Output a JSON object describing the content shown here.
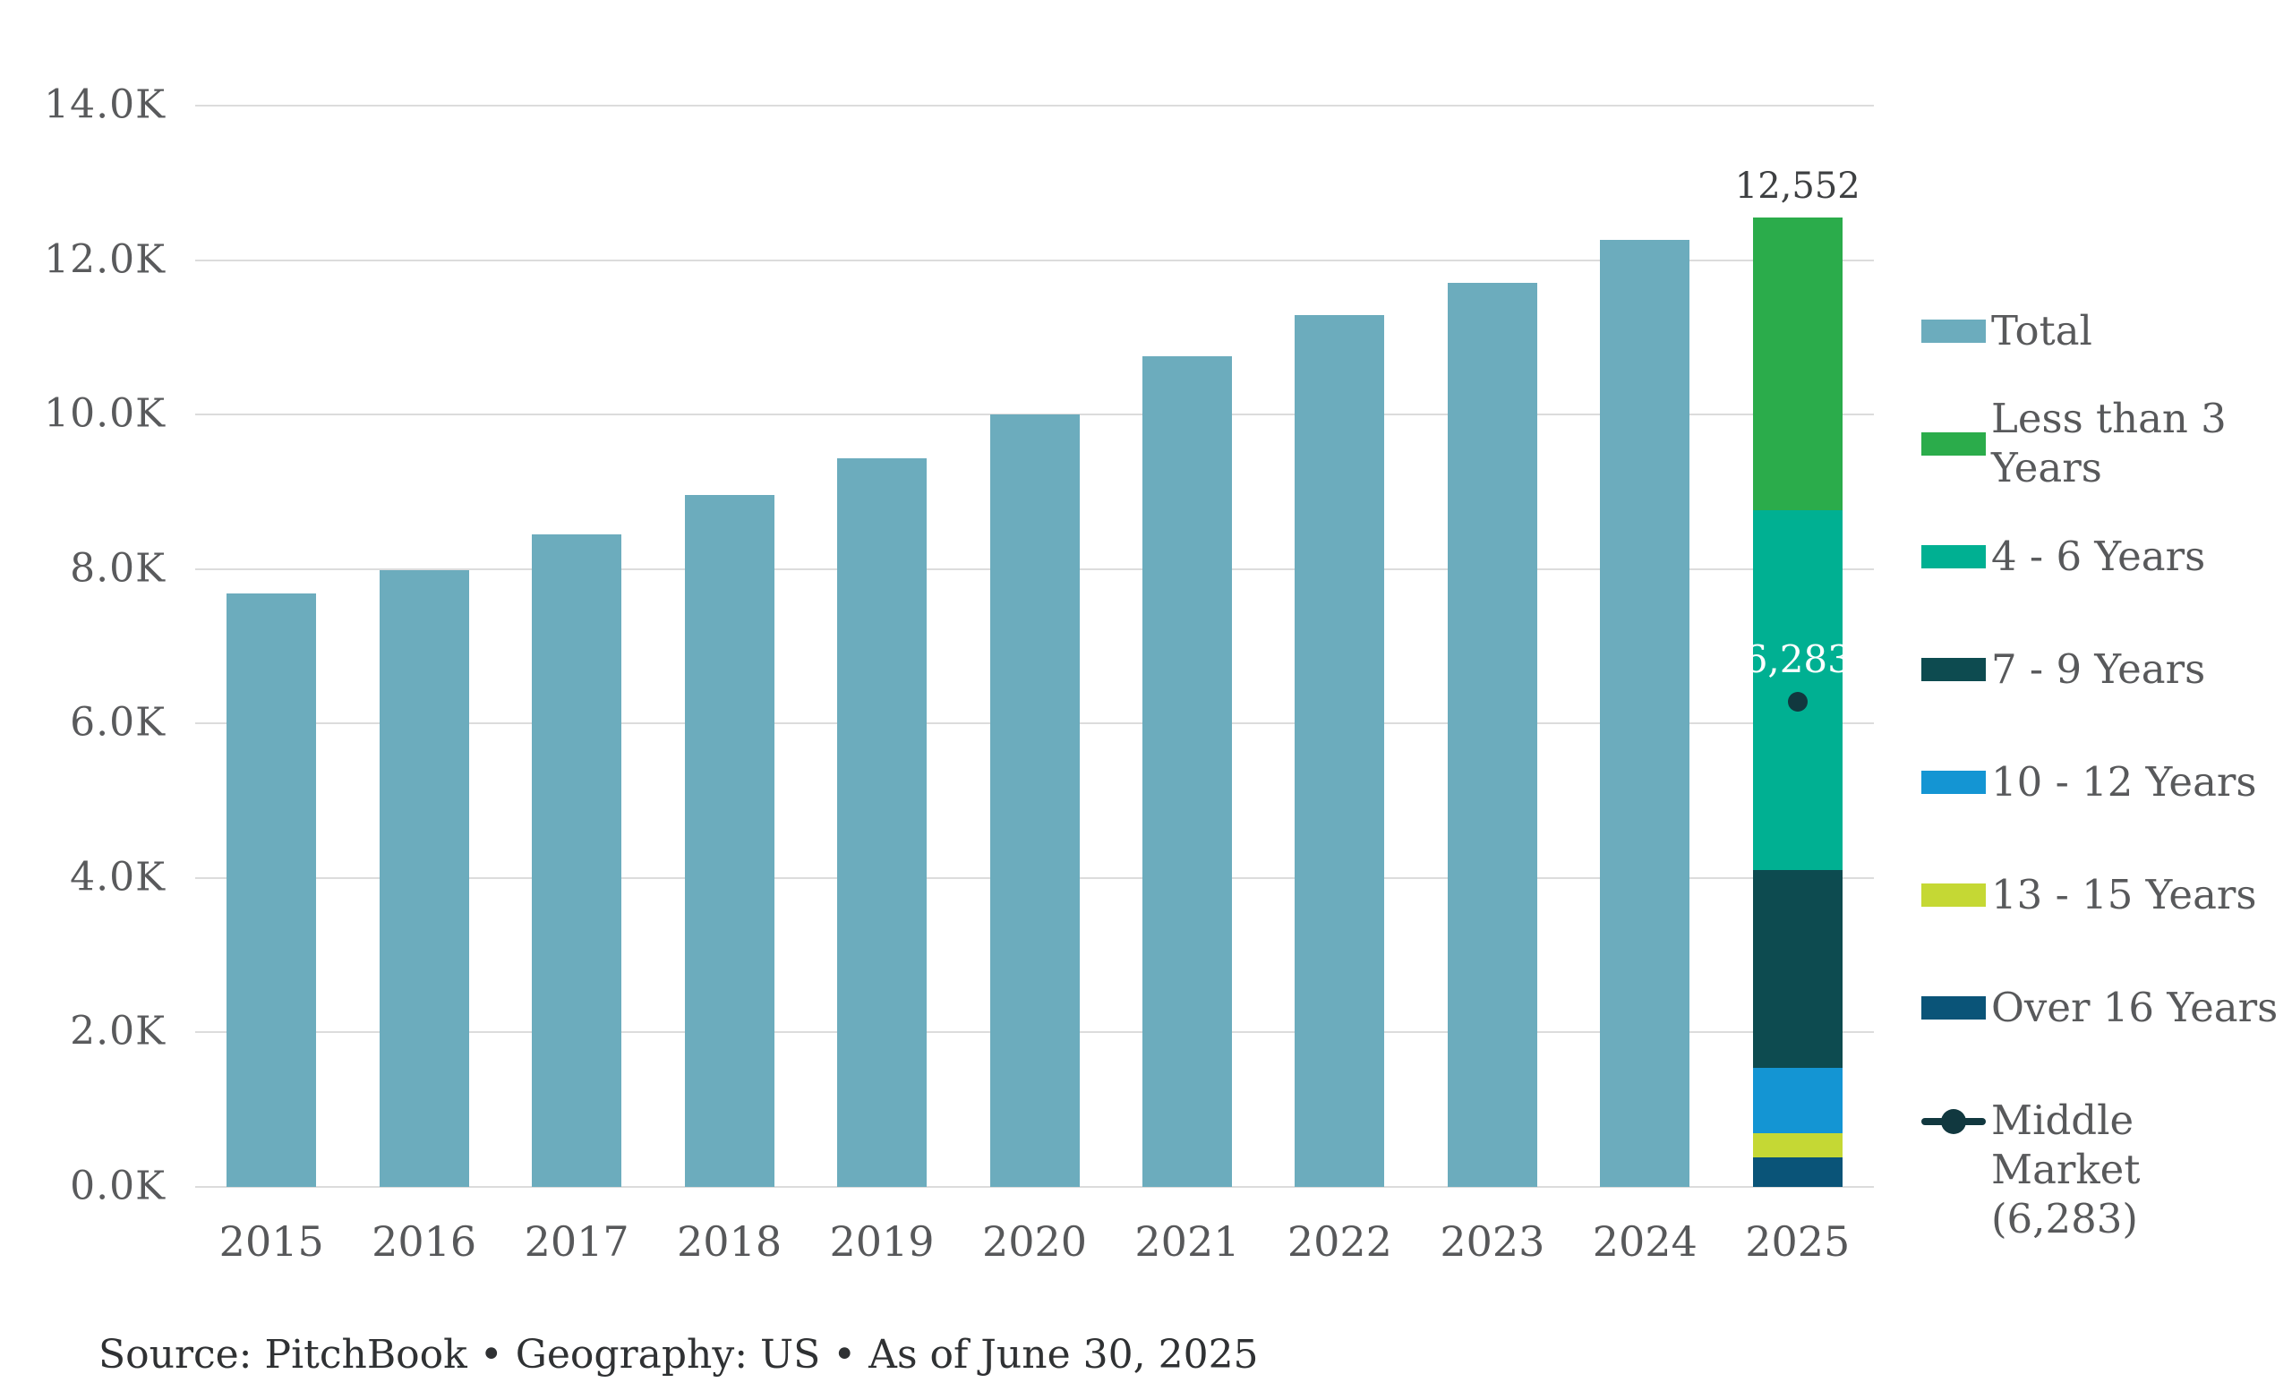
{
  "source_note": "Source: PitchBook • Geography: US • As of June 30, 2025",
  "colors": {
    "total": "#6cacbd",
    "less_than_3": "#2bac4b",
    "y4_6": "#00b092",
    "y7_9": "#0d4b50",
    "y10_12": "#1495d3",
    "y13_15": "#c5d834",
    "over_16": "#0a5478",
    "middle_market": "#11383f",
    "gridline": "#dcdcdc"
  },
  "chart_data": {
    "type": "bar",
    "title": "",
    "xlabel": "",
    "ylabel": "",
    "grid": true,
    "legend_position": "right",
    "x": [
      "2015",
      "2016",
      "2017",
      "2018",
      "2019",
      "2020",
      "2021",
      "2022",
      "2023",
      "2024",
      "2025"
    ],
    "ylim": [
      0,
      14000
    ],
    "yticks": [
      0,
      2000,
      4000,
      6000,
      8000,
      10000,
      12000,
      14000
    ],
    "ytick_labels": [
      "0.0K",
      "2.0K",
      "4.0K",
      "6.0K",
      "8.0K",
      "10.0K",
      "12.0K",
      "14.0K"
    ],
    "series_total": {
      "name": "Total",
      "color": "#6cacbd",
      "values": [
        7680,
        7990,
        8450,
        8960,
        9430,
        10000,
        10760,
        11290,
        11710,
        12260,
        null
      ]
    },
    "stacks": {
      "2025": [
        {
          "name": "Over 16 Years",
          "value": 380,
          "color": "#0a5478"
        },
        {
          "name": "13 - 15 Years",
          "value": 310,
          "color": "#c5d834"
        },
        {
          "name": "10 - 12 Years",
          "value": 850,
          "color": "#1495d3"
        },
        {
          "name": "7 - 9 Years",
          "value": 2560,
          "color": "#0d4b50"
        },
        {
          "name": "4 - 6 Years",
          "value": 4660,
          "color": "#00b092"
        },
        {
          "name": "Less than 3 Years",
          "value": 3792,
          "color": "#2bac4b"
        }
      ]
    },
    "stack_total": {
      "x": "2025",
      "value": 12552,
      "text": "12,552"
    },
    "point_marker": {
      "name": "Middle Market",
      "x": "2025",
      "value": 6283,
      "text": "6,283",
      "color": "#11383f"
    }
  },
  "legend": {
    "items": [
      {
        "type": "swatch",
        "color": "#6cacbd",
        "label": "Total"
      },
      {
        "type": "swatch",
        "color": "#2bac4b",
        "label": "Less than 3 Years"
      },
      {
        "type": "swatch",
        "color": "#00b092",
        "label": "4 - 6 Years"
      },
      {
        "type": "swatch",
        "color": "#0d4b50",
        "label": "7 - 9 Years"
      },
      {
        "type": "swatch",
        "color": "#1495d3",
        "label": "10 - 12 Years"
      },
      {
        "type": "swatch",
        "color": "#c5d834",
        "label": "13 - 15 Years"
      },
      {
        "type": "swatch",
        "color": "#0a5478",
        "label": "Over 16 Years"
      },
      {
        "type": "line-dot",
        "color": "#11383f",
        "label": "Middle Market",
        "sublabel": "(6,283)"
      }
    ]
  }
}
